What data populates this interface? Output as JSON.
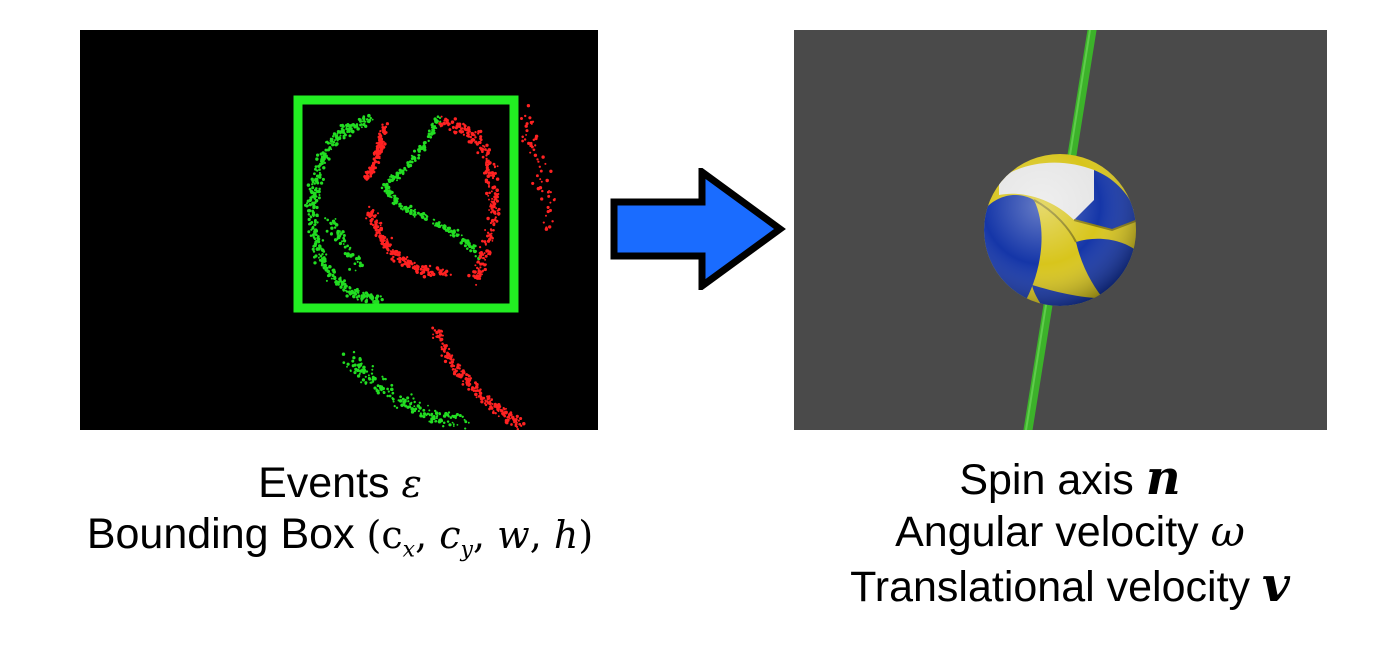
{
  "left_caption": {
    "line1_label": "Events",
    "line1_symbol": "ε",
    "line2_label": "Bounding Box",
    "line2_symbol": "(c_x, c_y, w, h)"
  },
  "right_caption": {
    "line1_label": "Spin axis",
    "line1_symbol": "n",
    "line2_label": "Angular velocity",
    "line2_symbol": "ω",
    "line3_label": "Translational velocity",
    "line3_symbol": "v"
  },
  "colors": {
    "events_background": "#000000",
    "bounding_box": "#22ee22",
    "positive_events": "#ff2222",
    "negative_events": "#22dd22",
    "arrow_fill": "#1a6cff",
    "render_background": "#4a4a4a",
    "spin_axis": "#3cb22a",
    "ball_blue": "#1536a8",
    "ball_yellow": "#d8c51c",
    "ball_white": "#e6e6e6"
  },
  "icons": {
    "flow_arrow": "right-arrow-icon",
    "ball": "volleyball-icon"
  }
}
